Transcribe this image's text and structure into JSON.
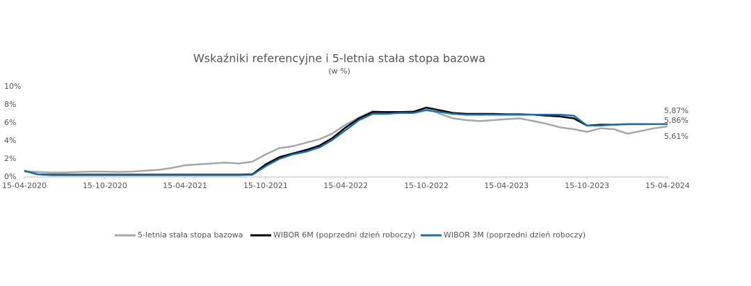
{
  "chart_data": {
    "type": "line",
    "title": "Wskaźniki referencyjne i 5-letnia stała stopa bazowa",
    "subtitle": "(w %)",
    "x": [
      "2020-04-15",
      "2020-05-15",
      "2020-06-15",
      "2020-07-15",
      "2020-08-15",
      "2020-09-15",
      "2020-10-15",
      "2020-11-15",
      "2020-12-15",
      "2021-01-15",
      "2021-02-15",
      "2021-03-15",
      "2021-04-15",
      "2021-05-15",
      "2021-06-15",
      "2021-07-15",
      "2021-08-15",
      "2021-09-15",
      "2021-10-15",
      "2021-11-15",
      "2021-12-15",
      "2022-01-15",
      "2022-02-15",
      "2022-03-15",
      "2022-04-15",
      "2022-05-15",
      "2022-06-15",
      "2022-07-15",
      "2022-08-15",
      "2022-09-15",
      "2022-10-15",
      "2022-11-15",
      "2022-12-15",
      "2023-01-15",
      "2023-02-15",
      "2023-03-15",
      "2023-04-15",
      "2023-05-15",
      "2023-06-15",
      "2023-07-15",
      "2023-08-15",
      "2023-09-15",
      "2023-10-15",
      "2023-11-15",
      "2023-12-15",
      "2024-01-15",
      "2024-02-15",
      "2024-03-15",
      "2024-04-15"
    ],
    "series": [
      {
        "name": "5-letnia stała stopa bazowa",
        "color": "#a6a6a6",
        "values": [
          0.6,
          0.55,
          0.5,
          0.5,
          0.55,
          0.6,
          0.6,
          0.55,
          0.6,
          0.7,
          0.8,
          1.0,
          1.3,
          1.4,
          1.5,
          1.6,
          1.5,
          1.7,
          2.5,
          3.2,
          3.4,
          3.8,
          4.2,
          4.8,
          5.8,
          6.6,
          7.3,
          7.2,
          7.2,
          7.3,
          7.6,
          7.0,
          6.5,
          6.3,
          6.2,
          6.3,
          6.4,
          6.5,
          6.2,
          5.9,
          5.5,
          5.3,
          5.0,
          5.4,
          5.3,
          4.8,
          5.1,
          5.4,
          5.61
        ]
      },
      {
        "name": "WIBOR 6M (poprzedni dzień roboczy)",
        "color": "#000000",
        "values": [
          0.7,
          0.3,
          0.26,
          0.26,
          0.26,
          0.26,
          0.26,
          0.26,
          0.26,
          0.26,
          0.26,
          0.26,
          0.26,
          0.26,
          0.26,
          0.26,
          0.26,
          0.3,
          1.4,
          2.2,
          2.6,
          3.0,
          3.5,
          4.3,
          5.5,
          6.5,
          7.2,
          7.2,
          7.2,
          7.2,
          7.7,
          7.4,
          7.1,
          7.0,
          7.0,
          7.0,
          6.95,
          6.95,
          6.9,
          6.8,
          6.7,
          6.5,
          5.7,
          5.8,
          5.8,
          5.85,
          5.85,
          5.86,
          5.87
        ]
      },
      {
        "name": "WIBOR 3M (poprzedni dzień roboczy)",
        "color": "#1a6faf",
        "values": [
          0.7,
          0.3,
          0.2,
          0.2,
          0.2,
          0.2,
          0.2,
          0.2,
          0.2,
          0.2,
          0.2,
          0.2,
          0.2,
          0.2,
          0.2,
          0.2,
          0.2,
          0.25,
          1.2,
          2.0,
          2.5,
          2.8,
          3.3,
          4.1,
          5.2,
          6.3,
          7.0,
          7.0,
          7.1,
          7.1,
          7.4,
          7.2,
          7.0,
          6.9,
          6.9,
          6.9,
          6.9,
          6.9,
          6.9,
          6.9,
          6.9,
          6.8,
          5.7,
          5.7,
          5.8,
          5.85,
          5.85,
          5.86,
          5.86
        ]
      }
    ],
    "annotations": [
      "5,87%",
      "5,86%",
      "5,61%"
    ],
    "xlim": [
      "2020-04-15",
      "2024-04-15"
    ],
    "xticks": [
      {
        "value": "2020-04-15",
        "label": "15-04-2020"
      },
      {
        "value": "2020-10-15",
        "label": "15-10-2020"
      },
      {
        "value": "2021-04-15",
        "label": "15-04-2021"
      },
      {
        "value": "2021-10-15",
        "label": "15-10-2021"
      },
      {
        "value": "2022-04-15",
        "label": "15-04-2022"
      },
      {
        "value": "2022-10-15",
        "label": "15-10-2022"
      },
      {
        "value": "2023-04-15",
        "label": "15-04-2023"
      },
      {
        "value": "2023-10-15",
        "label": "15-10-2023"
      },
      {
        "value": "2024-04-15",
        "label": "15-04-2024"
      }
    ],
    "ylim": [
      0,
      10
    ],
    "yticks": [
      {
        "value": 0,
        "label": "0%"
      },
      {
        "value": 2,
        "label": "2%"
      },
      {
        "value": 4,
        "label": "4%"
      },
      {
        "value": 6,
        "label": "6%"
      },
      {
        "value": 8,
        "label": "8%"
      },
      {
        "value": 10,
        "label": "10%"
      }
    ],
    "legend": "bottom"
  }
}
